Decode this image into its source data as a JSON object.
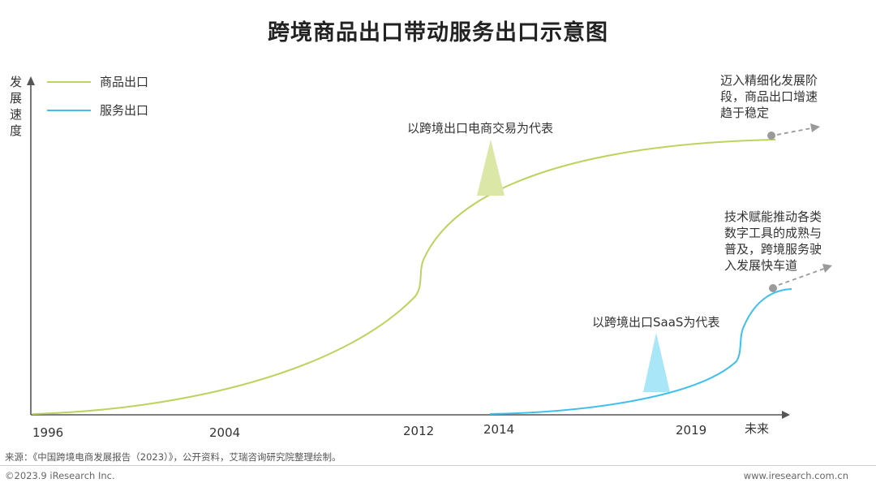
{
  "title": "跨境商品出口带动服务出口示意图",
  "y_axis_label": "发展速度",
  "legend": [
    {
      "label": "商品出口",
      "color": "#bcd35f"
    },
    {
      "label": "服务出口",
      "color": "#3ec0ec"
    }
  ],
  "x_ticks": [
    "1996",
    "2004",
    "2012",
    "2014",
    "2019",
    "未来"
  ],
  "annotations": {
    "goods_marker": "以跨境出口电商交易为代表",
    "service_marker": "以跨境出口SaaS为代表",
    "goods_note": [
      "迈入精细化发展阶",
      "段，商品出口增速",
      "趋于稳定"
    ],
    "service_note": [
      "技术赋能推动各类",
      "数字工具的成熟与",
      "普及，跨境服务驶",
      "入发展快车道"
    ]
  },
  "colors": {
    "goods": "#bcd35f",
    "goods_marker": "#dbe7a6",
    "service": "#3ec0ec",
    "service_marker": "#a8e6f8",
    "axis": "#555555",
    "dot": "#9a9a9a"
  },
  "footer": {
    "source": "来源：《中国跨境电商发展报告（2023）》，公开资料，艾瑞咨询研究院整理绘制。",
    "copyright": "©2023.9 iResearch Inc.",
    "website": "www.iresearch.com.cn"
  }
}
